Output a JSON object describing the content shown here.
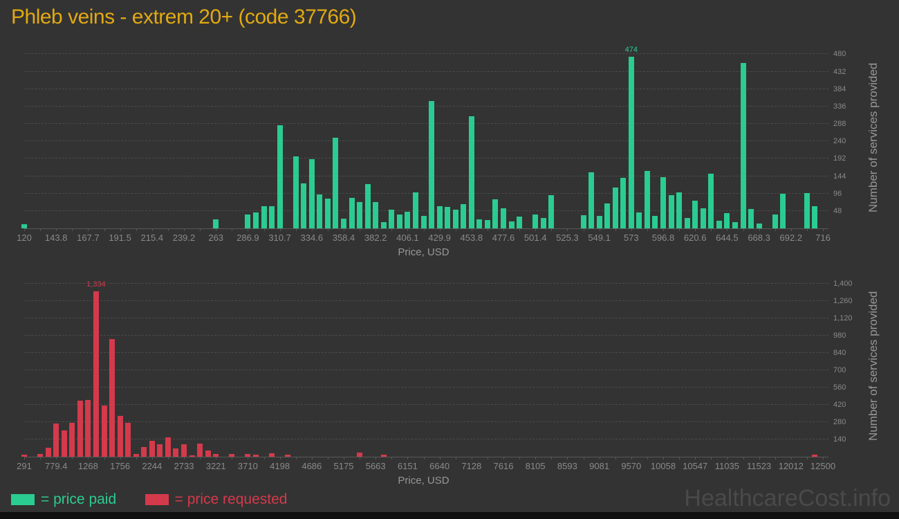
{
  "title": "Phleb veins - extrem 20+ (code 37766)",
  "watermark": "HealthcareCost.info",
  "colors": {
    "background": "#333333",
    "title": "#e2a90f",
    "paid": "#2acc92",
    "requested": "#d43a4b",
    "axis_text": "#8a8a8a",
    "gridline": "#4b4b4b"
  },
  "legend": {
    "items": [
      {
        "label": "= price paid",
        "color": "#2acc92"
      },
      {
        "label": "= price requested",
        "color": "#d43a4b"
      }
    ]
  },
  "chart_data": [
    {
      "type": "bar",
      "name": "price paid",
      "color": "#2acc92",
      "title": "Phleb veins - extrem 20+ (code 37766)",
      "xlabel": "Price, USD",
      "ylabel": "Number of services provided",
      "grid": true,
      "legend_position": "bottom-left",
      "x_range": [
        120,
        716
      ],
      "bin_width": 5.96,
      "n_bins": 100,
      "x_tick_labels": [
        "120",
        "143.8",
        "167.7",
        "191.5",
        "215.4",
        "239.2",
        "263",
        "286.9",
        "310.7",
        "334.6",
        "358.4",
        "382.2",
        "406.1",
        "429.9",
        "453.8",
        "477.6",
        "501.4",
        "525.3",
        "549.1",
        "573",
        "596.8",
        "620.6",
        "644.5",
        "668.3",
        "692.2",
        "716"
      ],
      "y_ticks": [
        48,
        96,
        144,
        192,
        240,
        288,
        336,
        384,
        432,
        480
      ],
      "y_tick_labels": [
        "48",
        "96",
        "144",
        "192",
        "240",
        "288",
        "336",
        "384",
        "432",
        "480"
      ],
      "ymax_render": 500,
      "values": [
        12,
        0,
        0,
        0,
        0,
        0,
        0,
        0,
        0,
        0,
        0,
        0,
        0,
        0,
        0,
        0,
        0,
        0,
        0,
        0,
        0,
        0,
        0,
        0,
        24,
        0,
        0,
        0,
        38,
        43,
        61,
        61,
        285,
        0,
        198,
        125,
        191,
        94,
        82,
        250,
        26,
        84,
        72,
        122,
        72,
        17,
        51,
        38,
        46,
        99,
        35,
        351,
        61,
        59,
        52,
        67,
        309,
        24,
        22,
        80,
        56,
        20,
        33,
        0,
        38,
        29,
        92,
        0,
        0,
        0,
        36,
        154,
        34,
        69,
        113,
        139,
        474,
        43,
        159,
        34,
        142,
        91,
        99,
        28,
        77,
        56,
        150,
        21,
        42,
        18,
        456,
        53,
        13,
        0,
        38,
        96,
        0,
        0,
        98,
        61
      ],
      "annotations": [
        {
          "bin": 76,
          "text": "474"
        }
      ]
    },
    {
      "type": "bar",
      "name": "price requested",
      "color": "#d43a4b",
      "title": "Phleb veins - extrem 20+ (code 37766)",
      "xlabel": "Price, USD",
      "ylabel": "Number of services provided",
      "grid": true,
      "legend_position": "bottom-left",
      "x_range": [
        291,
        12500
      ],
      "bin_width": 122.09,
      "n_bins": 100,
      "x_tick_labels": [
        "291",
        "779.4",
        "1268",
        "1756",
        "2244",
        "2733",
        "3221",
        "3710",
        "4198",
        "4686",
        "5175",
        "5663",
        "6151",
        "6640",
        "7128",
        "7616",
        "8105",
        "8593",
        "9081",
        "9570",
        "10058",
        "10547",
        "11035",
        "11523",
        "12012",
        "12500"
      ],
      "y_ticks": [
        140,
        280,
        420,
        560,
        700,
        840,
        980,
        1120,
        1260,
        1400
      ],
      "y_tick_labels": [
        "140",
        "280",
        "420",
        "560",
        "700",
        "840",
        "980",
        "1,120",
        "1,260",
        "1,400"
      ],
      "ymax_render": 1465,
      "values": [
        19,
        0,
        22,
        75,
        266,
        215,
        272,
        453,
        459,
        1334,
        416,
        950,
        328,
        275,
        24,
        79,
        126,
        103,
        156,
        66,
        99,
        13,
        107,
        52,
        23,
        0,
        24,
        0,
        24,
        19,
        0,
        28,
        0,
        19,
        0,
        0,
        0,
        0,
        0,
        0,
        0,
        0,
        32,
        0,
        0,
        19,
        0,
        0,
        0,
        0,
        0,
        0,
        0,
        0,
        0,
        0,
        0,
        0,
        0,
        0,
        0,
        0,
        0,
        0,
        0,
        0,
        0,
        0,
        0,
        0,
        0,
        0,
        0,
        0,
        0,
        0,
        0,
        0,
        0,
        0,
        0,
        0,
        0,
        0,
        0,
        0,
        0,
        0,
        0,
        0,
        0,
        0,
        0,
        0,
        0,
        0,
        0,
        0,
        0,
        19
      ],
      "annotations": [
        {
          "bin": 9,
          "text": "1,334"
        }
      ]
    }
  ]
}
